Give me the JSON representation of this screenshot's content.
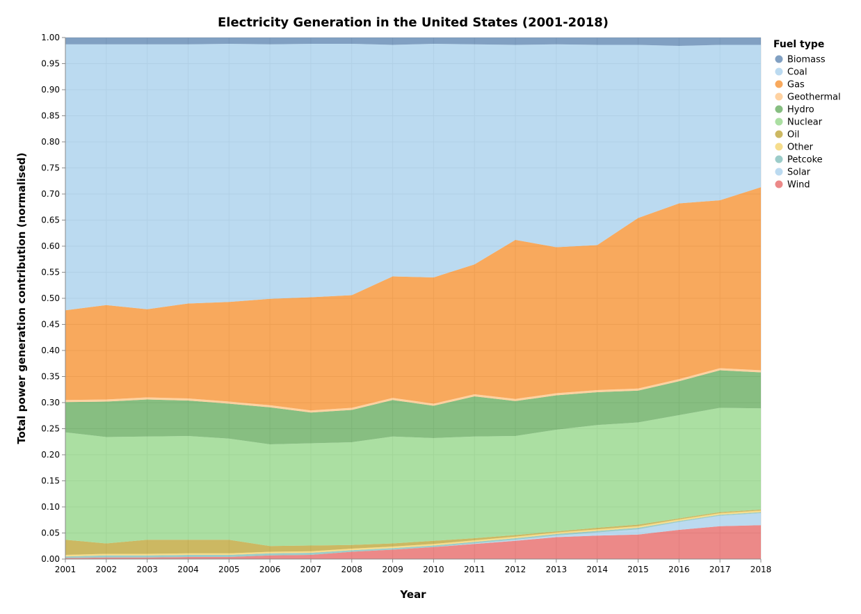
{
  "chart_data": {
    "type": "area",
    "stacked": true,
    "normalized": true,
    "title": "Electricity Generation in the United States (2001-2018)",
    "xlabel": "Year",
    "ylabel": "Total power generation contribution (normalised)",
    "ylim": [
      0,
      1
    ],
    "y_ticks": [
      "0.00",
      "0.05",
      "0.10",
      "0.15",
      "0.20",
      "0.25",
      "0.30",
      "0.35",
      "0.40",
      "0.45",
      "0.50",
      "0.55",
      "0.60",
      "0.65",
      "0.70",
      "0.75",
      "0.80",
      "0.85",
      "0.90",
      "0.95",
      "1.00"
    ],
    "grid": true,
    "legend_title": "Fuel type",
    "legend_position": "right",
    "x": [
      "2001",
      "2002",
      "2003",
      "2004",
      "2005",
      "2006",
      "2007",
      "2008",
      "2009",
      "2010",
      "2011",
      "2012",
      "2013",
      "2014",
      "2015",
      "2016",
      "2017",
      "2018"
    ],
    "series": [
      {
        "name": "Wind",
        "color": "#e45756",
        "values": [
          0.002,
          0.003,
          0.003,
          0.004,
          0.004,
          0.007,
          0.008,
          0.014,
          0.018,
          0.023,
          0.029,
          0.035,
          0.042,
          0.045,
          0.047,
          0.056,
          0.063,
          0.065
        ]
      },
      {
        "name": "Solar",
        "color": "#9ecae9",
        "values": [
          0.0,
          0.0,
          0.0,
          0.0,
          0.0,
          0.0,
          0.0,
          0.0,
          0.0,
          0.0,
          0.001,
          0.002,
          0.003,
          0.006,
          0.01,
          0.015,
          0.02,
          0.023
        ]
      },
      {
        "name": "Petcoke",
        "color": "#72b7b2",
        "values": [
          0.003,
          0.004,
          0.004,
          0.004,
          0.004,
          0.004,
          0.004,
          0.003,
          0.003,
          0.003,
          0.003,
          0.003,
          0.003,
          0.003,
          0.003,
          0.002,
          0.002,
          0.002
        ]
      },
      {
        "name": "Other",
        "color": "#f2cf5b",
        "values": [
          0.003,
          0.003,
          0.003,
          0.003,
          0.003,
          0.003,
          0.003,
          0.003,
          0.003,
          0.003,
          0.003,
          0.003,
          0.003,
          0.003,
          0.003,
          0.003,
          0.003,
          0.003
        ]
      },
      {
        "name": "Oil",
        "color": "#b79a20",
        "values": [
          0.029,
          0.02,
          0.027,
          0.026,
          0.026,
          0.011,
          0.011,
          0.007,
          0.006,
          0.006,
          0.004,
          0.003,
          0.002,
          0.003,
          0.003,
          0.002,
          0.002,
          0.002
        ]
      },
      {
        "name": "Nuclear",
        "color": "#88d27a",
        "values": [
          0.206,
          0.204,
          0.198,
          0.199,
          0.194,
          0.195,
          0.196,
          0.197,
          0.205,
          0.197,
          0.195,
          0.19,
          0.195,
          0.197,
          0.196,
          0.198,
          0.2,
          0.194
        ]
      },
      {
        "name": "Hydro",
        "color": "#54a24b",
        "values": [
          0.058,
          0.068,
          0.071,
          0.068,
          0.067,
          0.071,
          0.059,
          0.062,
          0.07,
          0.062,
          0.077,
          0.067,
          0.066,
          0.063,
          0.061,
          0.065,
          0.072,
          0.069
        ]
      },
      {
        "name": "Geothermal",
        "color": "#ffbf79",
        "values": [
          0.004,
          0.004,
          0.004,
          0.004,
          0.004,
          0.004,
          0.004,
          0.004,
          0.004,
          0.004,
          0.004,
          0.004,
          0.004,
          0.004,
          0.004,
          0.004,
          0.004,
          0.004
        ]
      },
      {
        "name": "Gas",
        "color": "#f58518",
        "values": [
          0.172,
          0.181,
          0.169,
          0.182,
          0.191,
          0.204,
          0.217,
          0.216,
          0.233,
          0.242,
          0.249,
          0.305,
          0.28,
          0.278,
          0.327,
          0.337,
          0.322,
          0.351
        ]
      },
      {
        "name": "Coal",
        "color": "#9ecae9",
        "values": [
          0.51,
          0.5,
          0.508,
          0.497,
          0.495,
          0.488,
          0.486,
          0.482,
          0.444,
          0.448,
          0.422,
          0.374,
          0.389,
          0.384,
          0.332,
          0.302,
          0.298,
          0.273
        ]
      },
      {
        "name": "Biomass",
        "color": "#4c78a8",
        "values": [
          0.013,
          0.013,
          0.013,
          0.013,
          0.012,
          0.013,
          0.012,
          0.012,
          0.014,
          0.012,
          0.013,
          0.014,
          0.013,
          0.014,
          0.014,
          0.016,
          0.014,
          0.014
        ]
      }
    ]
  }
}
